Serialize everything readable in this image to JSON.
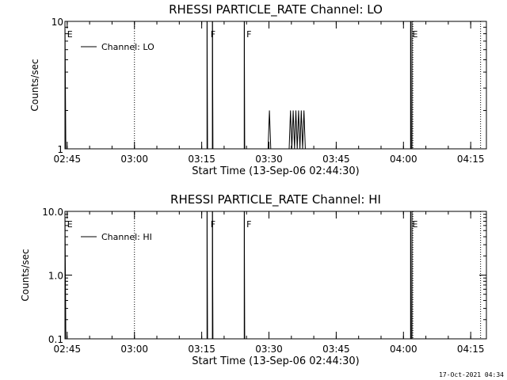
{
  "chart_data": [
    {
      "type": "line",
      "title": "RHESSI PARTICLE_RATE Channel: LO",
      "xlabel": "Start Time (13-Sep-06 02:44:30)",
      "ylabel": "Counts/sec",
      "x_tick_labels": [
        "02:45",
        "03:00",
        "03:15",
        "03:30",
        "03:45",
        "04:00",
        "04:15"
      ],
      "y_tick_labels": [
        "1",
        "10"
      ],
      "y_scale": "log",
      "ylim": [
        1,
        10
      ],
      "xlim_minutes": [
        0,
        94
      ],
      "legend": {
        "label": "Channel: LO",
        "position": "top-left"
      },
      "flags": [
        {
          "label": "E",
          "minute": 0.3
        },
        {
          "label": "F",
          "minute": 32.3
        },
        {
          "label": "F",
          "minute": 40.3
        },
        {
          "label": "E",
          "minute": 77.3
        }
      ],
      "vertical_lines": {
        "solid": [
          31.7,
          32.9,
          40.0,
          77.1,
          77.4
        ],
        "dotted": [
          15.5,
          77.6,
          92.7
        ]
      },
      "series": [
        {
          "name": "Channel: LO",
          "points": [
            [
              0.0,
              10
            ],
            [
              0.2,
              1
            ],
            [
              31.7,
              1
            ],
            [
              31.7,
              10
            ],
            [
              31.8,
              1
            ],
            [
              32.9,
              1
            ],
            [
              32.9,
              10
            ],
            [
              33.0,
              1
            ],
            [
              40.0,
              1
            ],
            [
              40.0,
              10
            ],
            [
              40.1,
              1
            ],
            [
              45.3,
              1
            ],
            [
              45.6,
              2
            ],
            [
              45.9,
              1
            ],
            [
              50.0,
              1
            ],
            [
              50.3,
              2
            ],
            [
              50.6,
              1
            ],
            [
              50.9,
              2
            ],
            [
              51.2,
              1
            ],
            [
              51.5,
              2
            ],
            [
              51.8,
              1
            ],
            [
              52.1,
              2
            ],
            [
              52.4,
              1
            ],
            [
              52.7,
              2
            ],
            [
              53.0,
              1
            ],
            [
              53.3,
              2
            ],
            [
              53.6,
              1
            ],
            [
              77.1,
              1
            ],
            [
              77.1,
              10
            ],
            [
              77.2,
              1
            ],
            [
              94.0,
              1
            ]
          ]
        }
      ]
    },
    {
      "type": "line",
      "title": "RHESSI PARTICLE_RATE Channel: HI",
      "xlabel": "Start Time (13-Sep-06 02:44:30)",
      "ylabel": "Counts/sec",
      "x_tick_labels": [
        "02:45",
        "03:00",
        "03:15",
        "03:30",
        "03:45",
        "04:00",
        "04:15"
      ],
      "y_tick_labels": [
        "0.1",
        "1.0",
        "10.0"
      ],
      "y_scale": "log",
      "ylim": [
        0.1,
        10
      ],
      "xlim_minutes": [
        0,
        94
      ],
      "legend": {
        "label": "Channel: HI",
        "position": "top-left"
      },
      "flags": [
        {
          "label": "E",
          "minute": 0.3
        },
        {
          "label": "F",
          "minute": 32.3
        },
        {
          "label": "F",
          "minute": 40.3
        },
        {
          "label": "E",
          "minute": 77.3
        }
      ],
      "vertical_lines": {
        "solid": [
          31.7,
          32.9,
          40.0,
          77.1,
          77.4
        ],
        "dotted": [
          15.5,
          77.6,
          92.7
        ]
      },
      "series": [
        {
          "name": "Channel: HI",
          "points": [
            [
              0.0,
              10
            ],
            [
              0.2,
              0.1
            ],
            [
              31.7,
              0.1
            ],
            [
              31.7,
              10
            ],
            [
              31.8,
              0.1
            ],
            [
              32.9,
              0.1
            ],
            [
              32.9,
              10
            ],
            [
              33.0,
              0.1
            ],
            [
              40.0,
              0.1
            ],
            [
              40.0,
              10
            ],
            [
              40.1,
              0.1
            ],
            [
              77.1,
              0.1
            ],
            [
              77.1,
              10
            ],
            [
              77.2,
              0.1
            ],
            [
              94.0,
              0.1
            ]
          ]
        }
      ]
    }
  ],
  "footer": {
    "timestamp": "17-Oct-2021 04:34"
  }
}
